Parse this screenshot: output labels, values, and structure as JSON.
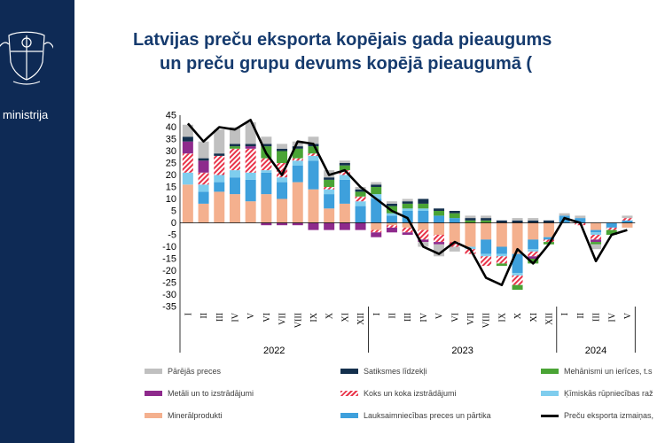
{
  "header": {
    "title_line1": "Latvijas preču eksporta kopējais gada pieaugums",
    "title_line2": "un preču grupu devums kopējā pieaugumā (",
    "sidebar_text": "ministrija"
  },
  "chart_data": {
    "type": "bar",
    "stacked": true,
    "categories": [
      "I",
      "II",
      "III",
      "IV",
      "V",
      "VI",
      "VII",
      "VIII",
      "IX",
      "X",
      "XI",
      "XII",
      "I",
      "II",
      "III",
      "IV",
      "V",
      "VI",
      "VII",
      "VIII",
      "IX",
      "X",
      "XI",
      "XII",
      "I",
      "II",
      "III",
      "IV",
      "V"
    ],
    "years": [
      {
        "label": "2022",
        "months": 12
      },
      {
        "label": "2023",
        "months": 12
      },
      {
        "label": "2024",
        "months": 5
      }
    ],
    "ylim": [
      -35,
      45
    ],
    "yticks": [
      -35,
      -30,
      -25,
      -20,
      -15,
      -10,
      -5,
      0,
      5,
      10,
      15,
      20,
      25,
      30,
      35,
      40,
      45
    ],
    "series": [
      {
        "name": "Minerālprodukti",
        "color": "#f4b08e",
        "values": [
          16,
          8,
          13,
          12,
          9,
          12,
          10,
          17,
          14,
          6,
          8,
          0,
          -3,
          -1,
          -2,
          -3,
          -5,
          -8,
          -10,
          -7,
          -10,
          -13,
          -7,
          -6,
          0,
          0,
          -3,
          0,
          -2
        ]
      },
      {
        "name": "Lauksaimniecības preces un pārtika",
        "color": "#3ea0dc",
        "values": [
          0,
          5,
          4,
          7,
          9,
          9,
          7,
          7,
          12,
          6,
          10,
          7,
          10,
          3,
          5,
          5,
          3,
          2,
          0,
          -6,
          -3,
          -8,
          -4,
          -1,
          3,
          2,
          -1,
          -2,
          1
        ]
      },
      {
        "name": "Ķīmiskās rūpniecības ražojumi",
        "color": "#7fcdee",
        "values": [
          5,
          3,
          3,
          3,
          3,
          1,
          2,
          2,
          2,
          2,
          2,
          2,
          2,
          1,
          1,
          1,
          0,
          0,
          -1,
          -1,
          -1,
          -1,
          -1,
          0,
          0,
          0,
          -1,
          0,
          0
        ]
      },
      {
        "name": "Koks un koka izstrādājumi",
        "color": "#e8344a",
        "pattern": "hatch",
        "values": [
          8,
          5,
          8,
          9,
          10,
          5,
          6,
          1,
          1,
          1,
          2,
          2,
          -1,
          -1,
          -2,
          -4,
          -3,
          -2,
          -2,
          -4,
          -3,
          -4,
          -2,
          -1,
          0,
          -1,
          -2,
          -1,
          1
        ]
      },
      {
        "name": "Metāli un to izstrādājumi",
        "color": "#8e2a8c",
        "values": [
          5,
          5,
          0,
          0,
          1,
          -1,
          -1,
          -1,
          -3,
          -3,
          -3,
          -3,
          -2,
          -2,
          -1,
          -1,
          -1,
          0,
          0,
          0,
          0,
          0,
          -1,
          0,
          0,
          0,
          -1,
          0,
          0
        ]
      },
      {
        "name": "Mehānismi un ierīces, t.sk. elektriskās",
        "color": "#4aa435",
        "values": [
          0,
          0,
          0,
          1,
          0,
          5,
          5,
          4,
          3,
          3,
          2,
          2,
          3,
          3,
          2,
          2,
          2,
          2,
          1,
          1,
          -1,
          -2,
          -2,
          -1,
          0,
          0,
          -1,
          -2,
          0
        ]
      },
      {
        "name": "Satiksmes līdzekļi",
        "color": "#14304d",
        "values": [
          2,
          1,
          1,
          1,
          1,
          1,
          1,
          1,
          1,
          1,
          1,
          1,
          1,
          1,
          1,
          2,
          1,
          1,
          1,
          1,
          1,
          1,
          1,
          1,
          0,
          0,
          0,
          0,
          0
        ]
      },
      {
        "name": "Pārējās preces",
        "color": "#c0c0c0",
        "values": [
          5,
          7,
          10,
          7,
          9,
          3,
          2,
          2,
          3,
          3,
          1,
          1,
          1,
          1,
          1,
          -2,
          -5,
          -2,
          1,
          1,
          0,
          1,
          1,
          0,
          1,
          1,
          -2,
          0,
          1
        ]
      },
      {
        "name": "Preču eksporta izmaiņas, %",
        "type": "line",
        "color": "#000000",
        "values": [
          41.5,
          34,
          40,
          39,
          43,
          29,
          20,
          34,
          33,
          20,
          22,
          15,
          10,
          5,
          2,
          -10,
          -13,
          -8,
          -11,
          -23,
          -26,
          -11,
          -17,
          -9,
          2,
          0,
          -16,
          -5,
          -3
        ]
      }
    ]
  },
  "legend": [
    {
      "label": "Pārējās preces",
      "color": "#c0c0c0"
    },
    {
      "label": "Satiksmes līdzekļi",
      "color": "#14304d"
    },
    {
      "label": "Mehānismi un ierīces, t.s",
      "color": "#4aa435"
    },
    {
      "label": "Metāli un to izstrādājumi",
      "color": "#8e2a8c"
    },
    {
      "label": "Koks un koka izstrādājumi",
      "color": "#e8344a",
      "pattern": "hatch"
    },
    {
      "label": "Ķīmiskās rūpniecības raž",
      "color": "#7fcdee"
    },
    {
      "label": "Minerālprodukti",
      "color": "#f4b08e"
    },
    {
      "label": "Lauksaimniecības preces un pārtika",
      "color": "#3ea0dc"
    },
    {
      "label": "Preču eksporta izmaiņas,",
      "color": "#000000",
      "line": true
    }
  ]
}
